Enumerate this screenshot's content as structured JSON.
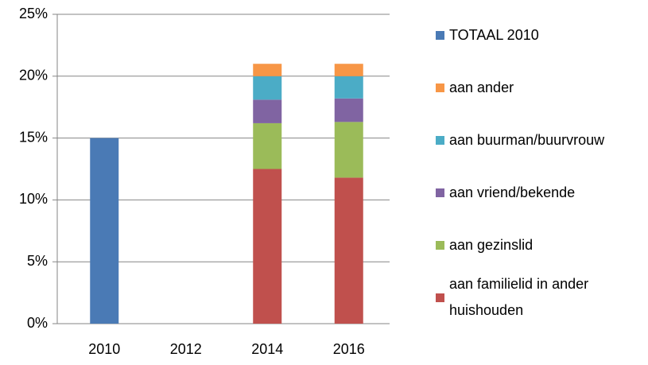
{
  "chart_data": {
    "type": "stacked_bar",
    "categories": [
      "2010",
      "2012",
      "2014",
      "2016"
    ],
    "series": [
      {
        "name": "aan familielid in ander huishouden",
        "color": "#c0504d",
        "values": [
          null,
          null,
          12.5,
          11.8
        ]
      },
      {
        "name": "aan gezinslid",
        "color": "#9bbb59",
        "values": [
          null,
          null,
          3.7,
          4.5
        ]
      },
      {
        "name": "aan vriend/bekende",
        "color": "#8064a2",
        "values": [
          null,
          null,
          1.9,
          1.9
        ]
      },
      {
        "name": "aan buurman/buurvrouw",
        "color": "#4bacc6",
        "values": [
          null,
          null,
          1.9,
          1.8
        ]
      },
      {
        "name": "aan ander",
        "color": "#f79646",
        "values": [
          null,
          null,
          1.0,
          1.0
        ]
      },
      {
        "name": "TOTAAL 2010",
        "color": "#4a7ab5",
        "values": [
          15.0,
          null,
          null,
          null
        ]
      }
    ],
    "ylim": [
      0,
      25
    ],
    "yticks": [
      {
        "value": 0,
        "label": "0%"
      },
      {
        "value": 5,
        "label": "5%"
      },
      {
        "value": 10,
        "label": "10%"
      },
      {
        "value": 15,
        "label": "15%"
      },
      {
        "value": 20,
        "label": "20%"
      },
      {
        "value": 25,
        "label": "25%"
      }
    ],
    "grid": true,
    "legend": "right"
  }
}
